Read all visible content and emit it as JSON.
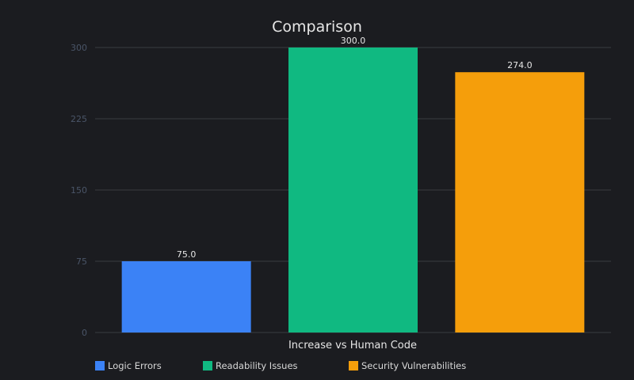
{
  "chart_data": {
    "type": "bar",
    "title": "Comparison",
    "xlabel": "Increase vs Human Code",
    "ylabel": "",
    "ylim": [
      0,
      300
    ],
    "yticks": [
      0,
      75,
      150,
      225,
      300
    ],
    "grid": true,
    "legend_position": "bottom",
    "series": [
      {
        "name": "Logic Errors",
        "value": 75.0,
        "value_label": "75.0",
        "color": "#3b82f6"
      },
      {
        "name": "Readability Issues",
        "value": 300.0,
        "value_label": "300.0",
        "color": "#10b981"
      },
      {
        "name": "Security Vulnerabilities",
        "value": 274.0,
        "value_label": "274.0",
        "color": "#f59e0b"
      }
    ]
  }
}
